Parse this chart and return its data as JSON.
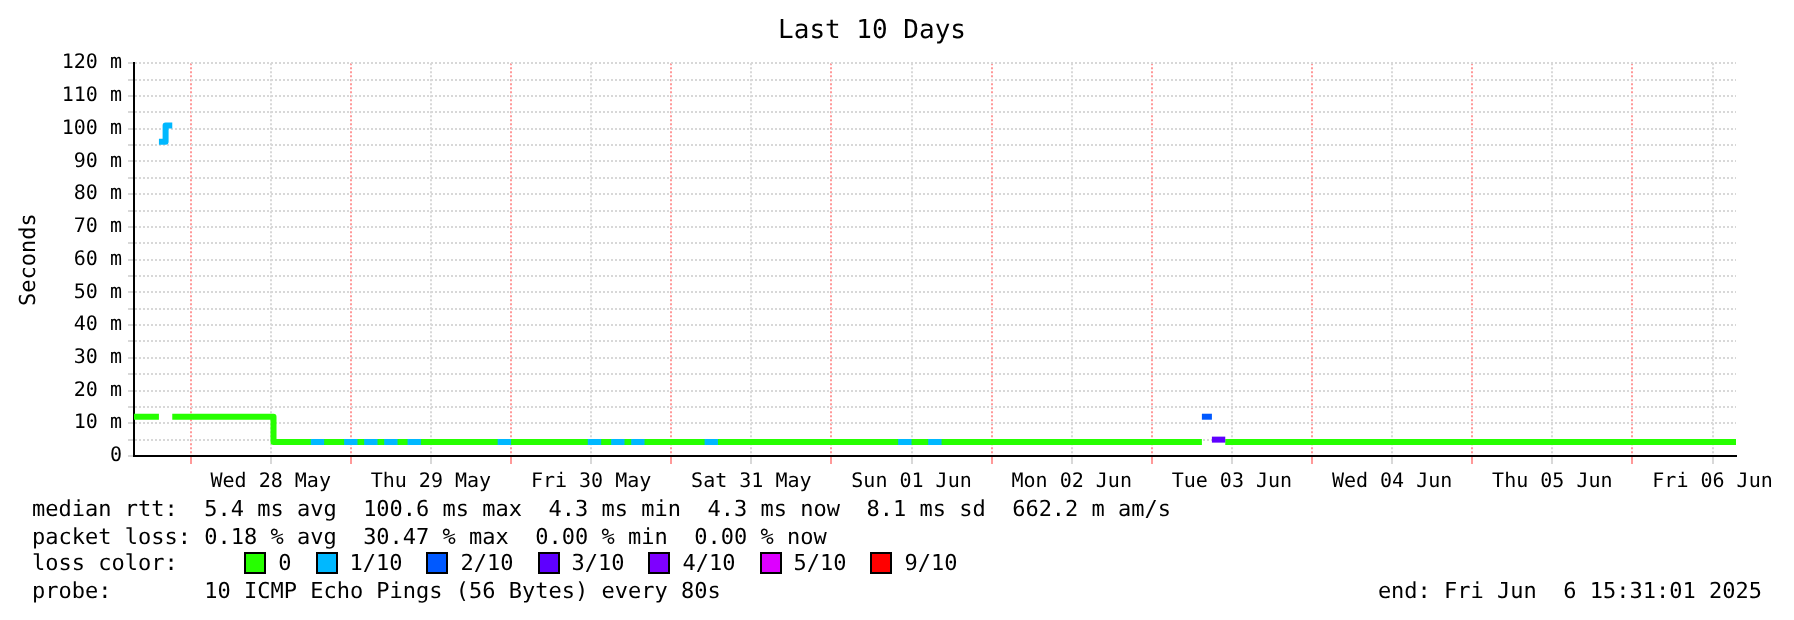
{
  "chart_data": {
    "type": "step",
    "title": "Last 10 Days",
    "ylabel": "Seconds",
    "legend_title": "loss color:",
    "legend": "bottom",
    "grid": true,
    "xlim": [
      "2025-05-27T15:31",
      "2025-06-06T15:31"
    ],
    "xticks": [
      {
        "value": "2025-05-28T00:00",
        "label": null
      },
      {
        "value": "2025-05-28T12:00",
        "label": "Wed 28 May"
      },
      {
        "value": "2025-05-29T00:00",
        "label": null
      },
      {
        "value": "2025-05-29T12:00",
        "label": "Thu 29 May"
      },
      {
        "value": "2025-05-30T00:00",
        "label": null
      },
      {
        "value": "2025-05-30T12:00",
        "label": "Fri 30 May"
      },
      {
        "value": "2025-05-31T00:00",
        "label": null
      },
      {
        "value": "2025-05-31T12:00",
        "label": "Sat 31 May"
      },
      {
        "value": "2025-06-01T00:00",
        "label": null
      },
      {
        "value": "2025-06-01T12:00",
        "label": "Sun 01 Jun"
      },
      {
        "value": "2025-06-02T00:00",
        "label": null
      },
      {
        "value": "2025-06-02T12:00",
        "label": "Mon 02 Jun"
      },
      {
        "value": "2025-06-03T00:00",
        "label": null
      },
      {
        "value": "2025-06-03T12:00",
        "label": "Tue 03 Jun"
      },
      {
        "value": "2025-06-04T00:00",
        "label": null
      },
      {
        "value": "2025-06-04T12:00",
        "label": "Wed 04 Jun"
      },
      {
        "value": "2025-06-05T00:00",
        "label": null
      },
      {
        "value": "2025-06-05T12:00",
        "label": "Thu 05 Jun"
      },
      {
        "value": "2025-06-06T00:00",
        "label": null
      },
      {
        "value": "2025-06-06T12:00",
        "label": "Fri 06 Jun"
      }
    ],
    "ylim": [
      0,
      120
    ],
    "yticks": [
      0,
      {
        "value": 5,
        "label": null
      },
      {
        "value": 10,
        "label": "10 m"
      },
      {
        "value": 15,
        "label": null
      },
      {
        "value": 20,
        "label": "20 m"
      },
      {
        "value": 25,
        "label": null
      },
      {
        "value": 30,
        "label": "30 m"
      },
      {
        "value": 35,
        "label": null
      },
      {
        "value": 40,
        "label": "40 m"
      },
      {
        "value": 45,
        "label": null
      },
      {
        "value": 50,
        "label": "50 m"
      },
      {
        "value": 55,
        "label": null
      },
      {
        "value": 60,
        "label": "60 m"
      },
      {
        "value": 65,
        "label": null
      },
      {
        "value": 70,
        "label": "70 m"
      },
      {
        "value": 75,
        "label": null
      },
      {
        "value": 80,
        "label": "80 m"
      },
      {
        "value": 85,
        "label": null
      },
      {
        "value": 90,
        "label": "90 m"
      },
      {
        "value": 95,
        "label": null
      },
      {
        "value": 100,
        "label": "100 m"
      },
      {
        "value": 105,
        "label": null
      },
      {
        "value": 110,
        "label": "110 m"
      },
      {
        "value": 115,
        "label": null
      },
      {
        "value": 120,
        "label": "120 m"
      }
    ],
    "series": [
      {
        "name": "0",
        "color": "#26ff00",
        "x": [
          "2025-05-27T15:31",
          "2025-05-27T19:15",
          null,
          "2025-05-27T21:15",
          "2025-05-28T12:20",
          "2025-05-28T12:25",
          "2025-06-03T07:30",
          null,
          "2025-06-03T11:00",
          "2025-06-06T15:31"
        ],
        "values": [
          12,
          12,
          null,
          12,
          12,
          4.3,
          4.3,
          null,
          4.3,
          4.3
        ]
      },
      {
        "name": "1/10",
        "color": "#00b8ff",
        "x": [
          "2025-05-27T19:15",
          "2025-05-27T20:15",
          "2025-05-27T21:15",
          null,
          "2025-05-28T18:00",
          "2025-05-28T20:00",
          null,
          "2025-05-28T23:00",
          "2025-05-29T01:00",
          null,
          "2025-05-29T02:00",
          "2025-05-29T04:00",
          null,
          "2025-05-29T05:00",
          "2025-05-29T07:00",
          null,
          "2025-05-29T08:30",
          "2025-05-29T10:30",
          null,
          "2025-05-29T22:00",
          "2025-05-30T00:00",
          null,
          "2025-05-30T11:30",
          "2025-05-30T13:30",
          null,
          "2025-05-30T15:00",
          "2025-05-30T17:00",
          null,
          "2025-05-30T18:00",
          "2025-05-30T20:00",
          null,
          "2025-05-31T05:00",
          "2025-05-31T07:00",
          null,
          "2025-06-01T10:00",
          "2025-06-01T12:00",
          null,
          "2025-06-01T14:30",
          "2025-06-01T16:30"
        ],
        "values": [
          96,
          101,
          101,
          null,
          4.3,
          4.3,
          null,
          4.3,
          4.3,
          null,
          4.3,
          4.3,
          null,
          4.3,
          4.3,
          null,
          4.3,
          4.3,
          null,
          4.3,
          4.3,
          null,
          4.3,
          4.3,
          null,
          4.3,
          4.3,
          null,
          4.3,
          4.3,
          null,
          4.3,
          4.3,
          null,
          4.3,
          4.3,
          null,
          4.3,
          4.3
        ]
      },
      {
        "name": "2/10",
        "color": "#0059ff",
        "x": [
          "2025-06-03T07:30",
          "2025-06-03T09:00"
        ],
        "values": [
          12,
          12
        ]
      },
      {
        "name": "3/10",
        "color": "#5e00ff",
        "x": [
          "2025-06-03T09:00",
          "2025-06-03T11:00"
        ],
        "values": [
          5,
          5
        ]
      },
      {
        "name": "4/10",
        "color": "#7e00ff"
      },
      {
        "name": "5/10",
        "color": "#dd00ff"
      },
      {
        "name": "9/10",
        "color": "#ff0000"
      }
    ],
    "annotations": [
      "median rtt:  5.4 ms avg  100.6 ms max  4.3 ms min  4.3 ms now  8.1 ms sd  662.2 m am/s",
      "packet loss: 0.18 % avg  30.47 % max  0.00 % min  0.00 % now",
      "probe:       10 ICMP Echo Pings (56 Bytes) every 80s",
      "end: Fri Jun  6 15:31:01 2025"
    ]
  }
}
